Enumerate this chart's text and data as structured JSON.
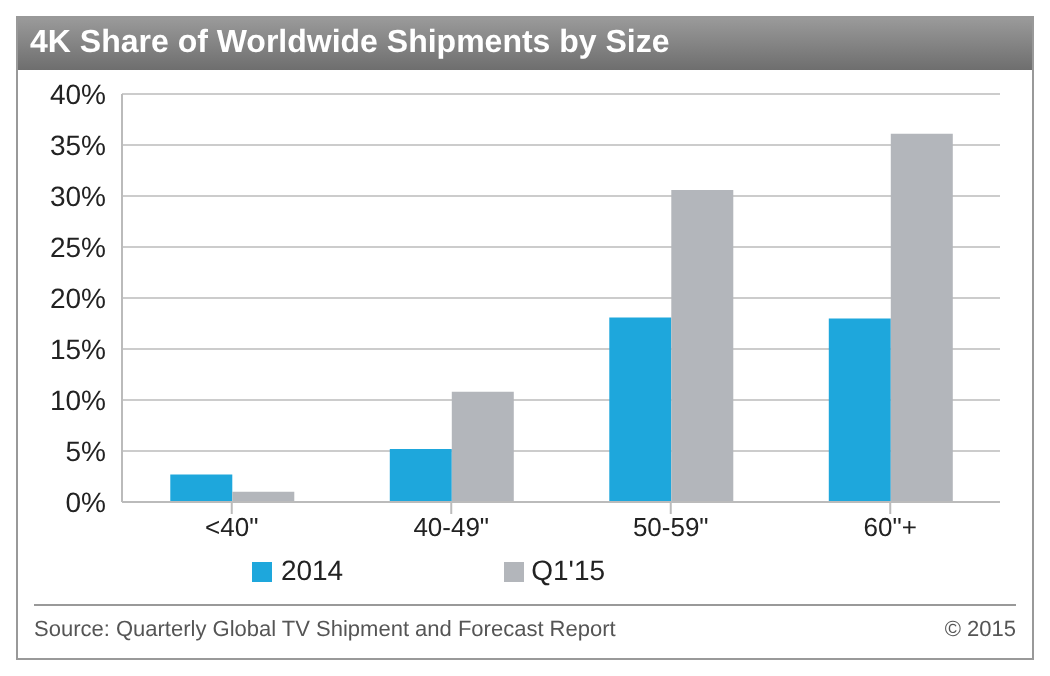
{
  "chart_data": {
    "type": "bar",
    "title": "4K Share of Worldwide Shipments by Size",
    "categories": [
      "<40\"",
      "40-49\"",
      "50-59\"",
      "60\"+"
    ],
    "series": [
      {
        "name": "2014",
        "color": "#1ea7dc",
        "values": [
          2.7,
          5.2,
          18.1,
          18.0
        ]
      },
      {
        "name": "Q1'15",
        "color": "#b3b6bb",
        "values": [
          1.0,
          10.8,
          30.6,
          36.1
        ]
      }
    ],
    "ylim": [
      0,
      40
    ],
    "yticks": [
      {
        "value": 0,
        "label": "0%"
      },
      {
        "value": 5,
        "label": "5%"
      },
      {
        "value": 10,
        "label": "10%"
      },
      {
        "value": 15,
        "label": "15%"
      },
      {
        "value": 20,
        "label": "20%"
      },
      {
        "value": 25,
        "label": "25%"
      },
      {
        "value": 30,
        "label": "30%"
      },
      {
        "value": 35,
        "label": "35%"
      },
      {
        "value": 40,
        "label": "40%"
      }
    ],
    "grid": "y",
    "legend": "bottom",
    "annotations": [
      "Source: Quarterly Global TV Shipment and Forecast Report",
      "© 2015"
    ]
  }
}
